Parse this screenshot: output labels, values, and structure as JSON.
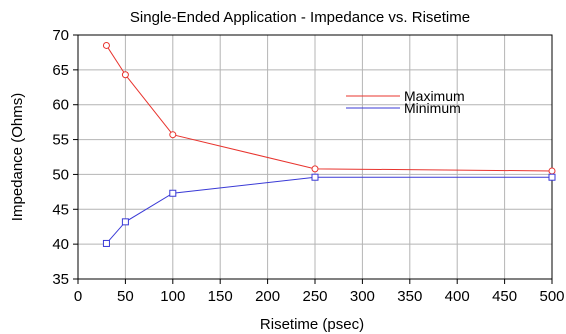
{
  "chart_data": {
    "type": "line",
    "title": "Single-Ended Application - Impedance vs. Risetime",
    "xlabel": "Risetime (psec)",
    "ylabel": "Impedance (Ohms)",
    "xlim": [
      0,
      500
    ],
    "ylim": [
      35,
      70
    ],
    "xticks": [
      0,
      50,
      100,
      150,
      200,
      250,
      300,
      350,
      400,
      450,
      500
    ],
    "yticks": [
      35,
      40,
      45,
      50,
      55,
      60,
      65,
      70
    ],
    "grid": true,
    "legend_position": "upper-right",
    "series": [
      {
        "name": "Maximum",
        "color": "#e8342e",
        "marker": "circle",
        "x": [
          30,
          50,
          100,
          250,
          500
        ],
        "y": [
          68.5,
          64.3,
          55.7,
          50.8,
          50.5
        ]
      },
      {
        "name": "Minimum",
        "color": "#3a3ad6",
        "marker": "square",
        "x": [
          30,
          50,
          100,
          250,
          500
        ],
        "y": [
          40.1,
          43.2,
          47.3,
          49.6,
          49.6
        ]
      }
    ]
  }
}
